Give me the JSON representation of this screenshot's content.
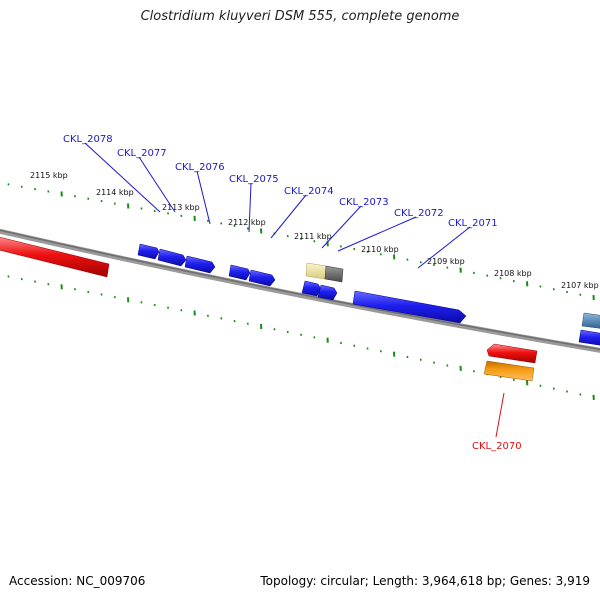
{
  "title": "Clostridium kluyveri DSM 555, complete genome",
  "accession": "Accession: NC_009706",
  "summary": "Topology: circular; Length: 3,964,618 bp; Genes: 3,919",
  "colors": {
    "backbone": "#808080",
    "tick": "#1a8a1a",
    "gene_forward": "#1f1ff0",
    "gene_reverse_red": "#ee1111",
    "gene_orange": "#f59a10",
    "gene_pale": "#efe6a0",
    "gene_gray": "#6d6d6d",
    "gene_steel": "#4c86b8",
    "label_blue": "#1a1ad0",
    "label_red": "#dd1111"
  },
  "kbp_labels": [
    "2115 kbp",
    "2114 kbp",
    "2113 kbp",
    "2112 kbp",
    "2111 kbp",
    "2110 kbp",
    "2109 kbp",
    "2108 kbp",
    "2107 kbp"
  ],
  "gene_labels": [
    {
      "text": "CKL_2078",
      "color": "blue"
    },
    {
      "text": "CKL_2077",
      "color": "blue"
    },
    {
      "text": "CKL_2076",
      "color": "blue"
    },
    {
      "text": "CKL_2075",
      "color": "blue"
    },
    {
      "text": "CKL_2074",
      "color": "blue"
    },
    {
      "text": "CKL_2073",
      "color": "blue"
    },
    {
      "text": "CKL_2072",
      "color": "blue"
    },
    {
      "text": "CKL_2071",
      "color": "blue"
    },
    {
      "text": "CKL_2070",
      "color": "red"
    }
  ]
}
